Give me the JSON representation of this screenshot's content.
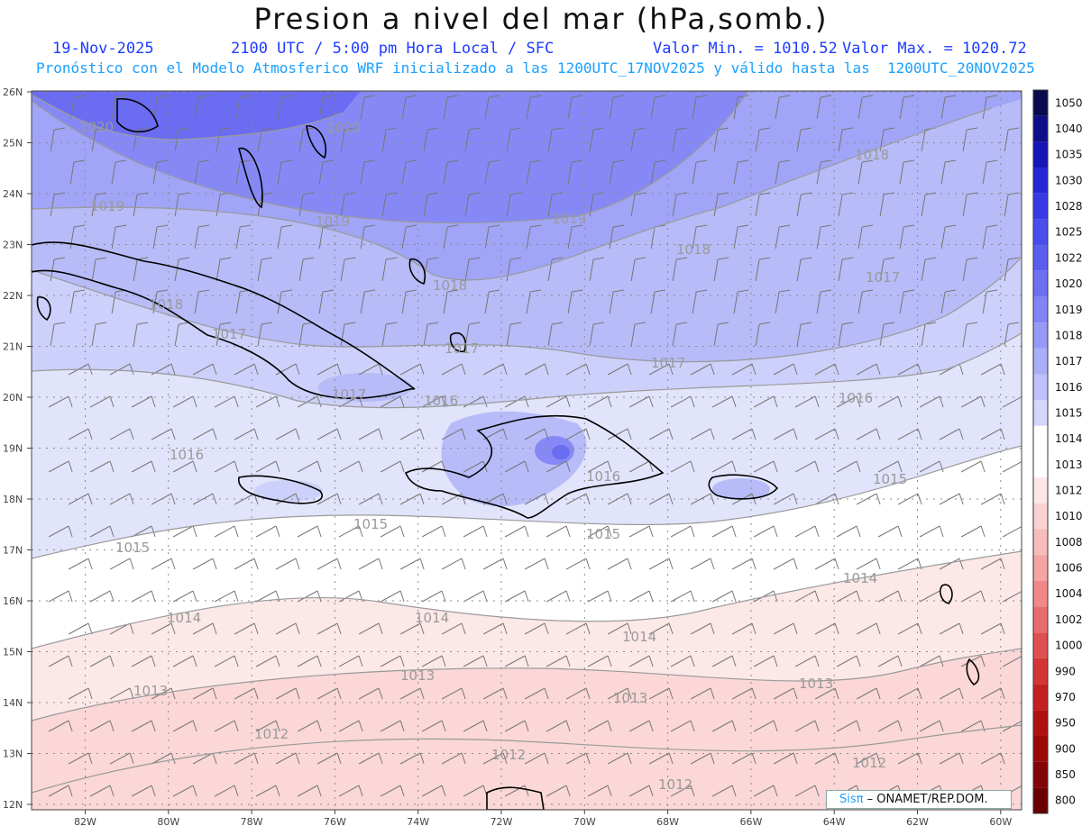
{
  "header": {
    "title": "Presion a nivel del mar (hPa,somb.)",
    "date": "19-Nov-2025",
    "time_info": "2100 UTC / 5:00 pm Hora Local / SFC",
    "min_value": "Valor Min. = 1010.52",
    "max_value": "Valor Max. = 1020.72",
    "model_info": "Pronóstico con el Modelo Atmosferico WRF inicializado a las 1200UTC_17NOV2025 y válido hasta las  1200UTC_20NOV2025"
  },
  "credit": {
    "brand": "Sisπ",
    "text": " – ONAMET/REP.DOM."
  },
  "map": {
    "lat_labels": [
      "26N",
      "25N",
      "24N",
      "23N",
      "22N",
      "21N",
      "20N",
      "19N",
      "18N",
      "17N",
      "16N",
      "15N",
      "14N",
      "13N",
      "12N"
    ],
    "lon_labels": [
      "82W",
      "80W",
      "78W",
      "76W",
      "74W",
      "72W",
      "70W",
      "68W",
      "66W",
      "64W",
      "62W",
      "60W"
    ],
    "contour_labels": [
      "1020",
      "1019",
      "1018",
      "1017",
      "1016",
      "1015",
      "1014",
      "1013",
      "1012"
    ],
    "colors": {
      "p1020": "#6a6cf2",
      "p1019": "#8689f5",
      "p1018": "#a1a5f7",
      "p1017": "#b7bbf8",
      "p1016": "#cdd0fa",
      "p1015": "#e2e4fc",
      "p1014": "#ffffff",
      "p1013": "#fde8e8",
      "p1012": "#fbd7d7"
    }
  },
  "colorbar": {
    "levels": [
      "1050",
      "1040",
      "1035",
      "1030",
      "1028",
      "1025",
      "1022",
      "1020",
      "1019",
      "1018",
      "1017",
      "1016",
      "1015",
      "1014",
      "1013",
      "1012",
      "1010",
      "1008",
      "1006",
      "1004",
      "1002",
      "1000",
      "990",
      "970",
      "950",
      "900",
      "850",
      "800"
    ],
    "colors": [
      "#0a0a4e",
      "#0e0e8a",
      "#1616b8",
      "#2626d8",
      "#3838e6",
      "#4a4cec",
      "#5c5ef0",
      "#6e70f2",
      "#8284f4",
      "#9699f6",
      "#aaadf8",
      "#bec1fa",
      "#d4d6fb",
      "#ffffff",
      "#ffffff",
      "#fde6e6",
      "#fbd2d2",
      "#f8bcbc",
      "#f5a3a3",
      "#f08888",
      "#ea6c6c",
      "#e05050",
      "#d43636",
      "#c42020",
      "#b01010",
      "#9a0808",
      "#820404",
      "#6a0000"
    ]
  }
}
